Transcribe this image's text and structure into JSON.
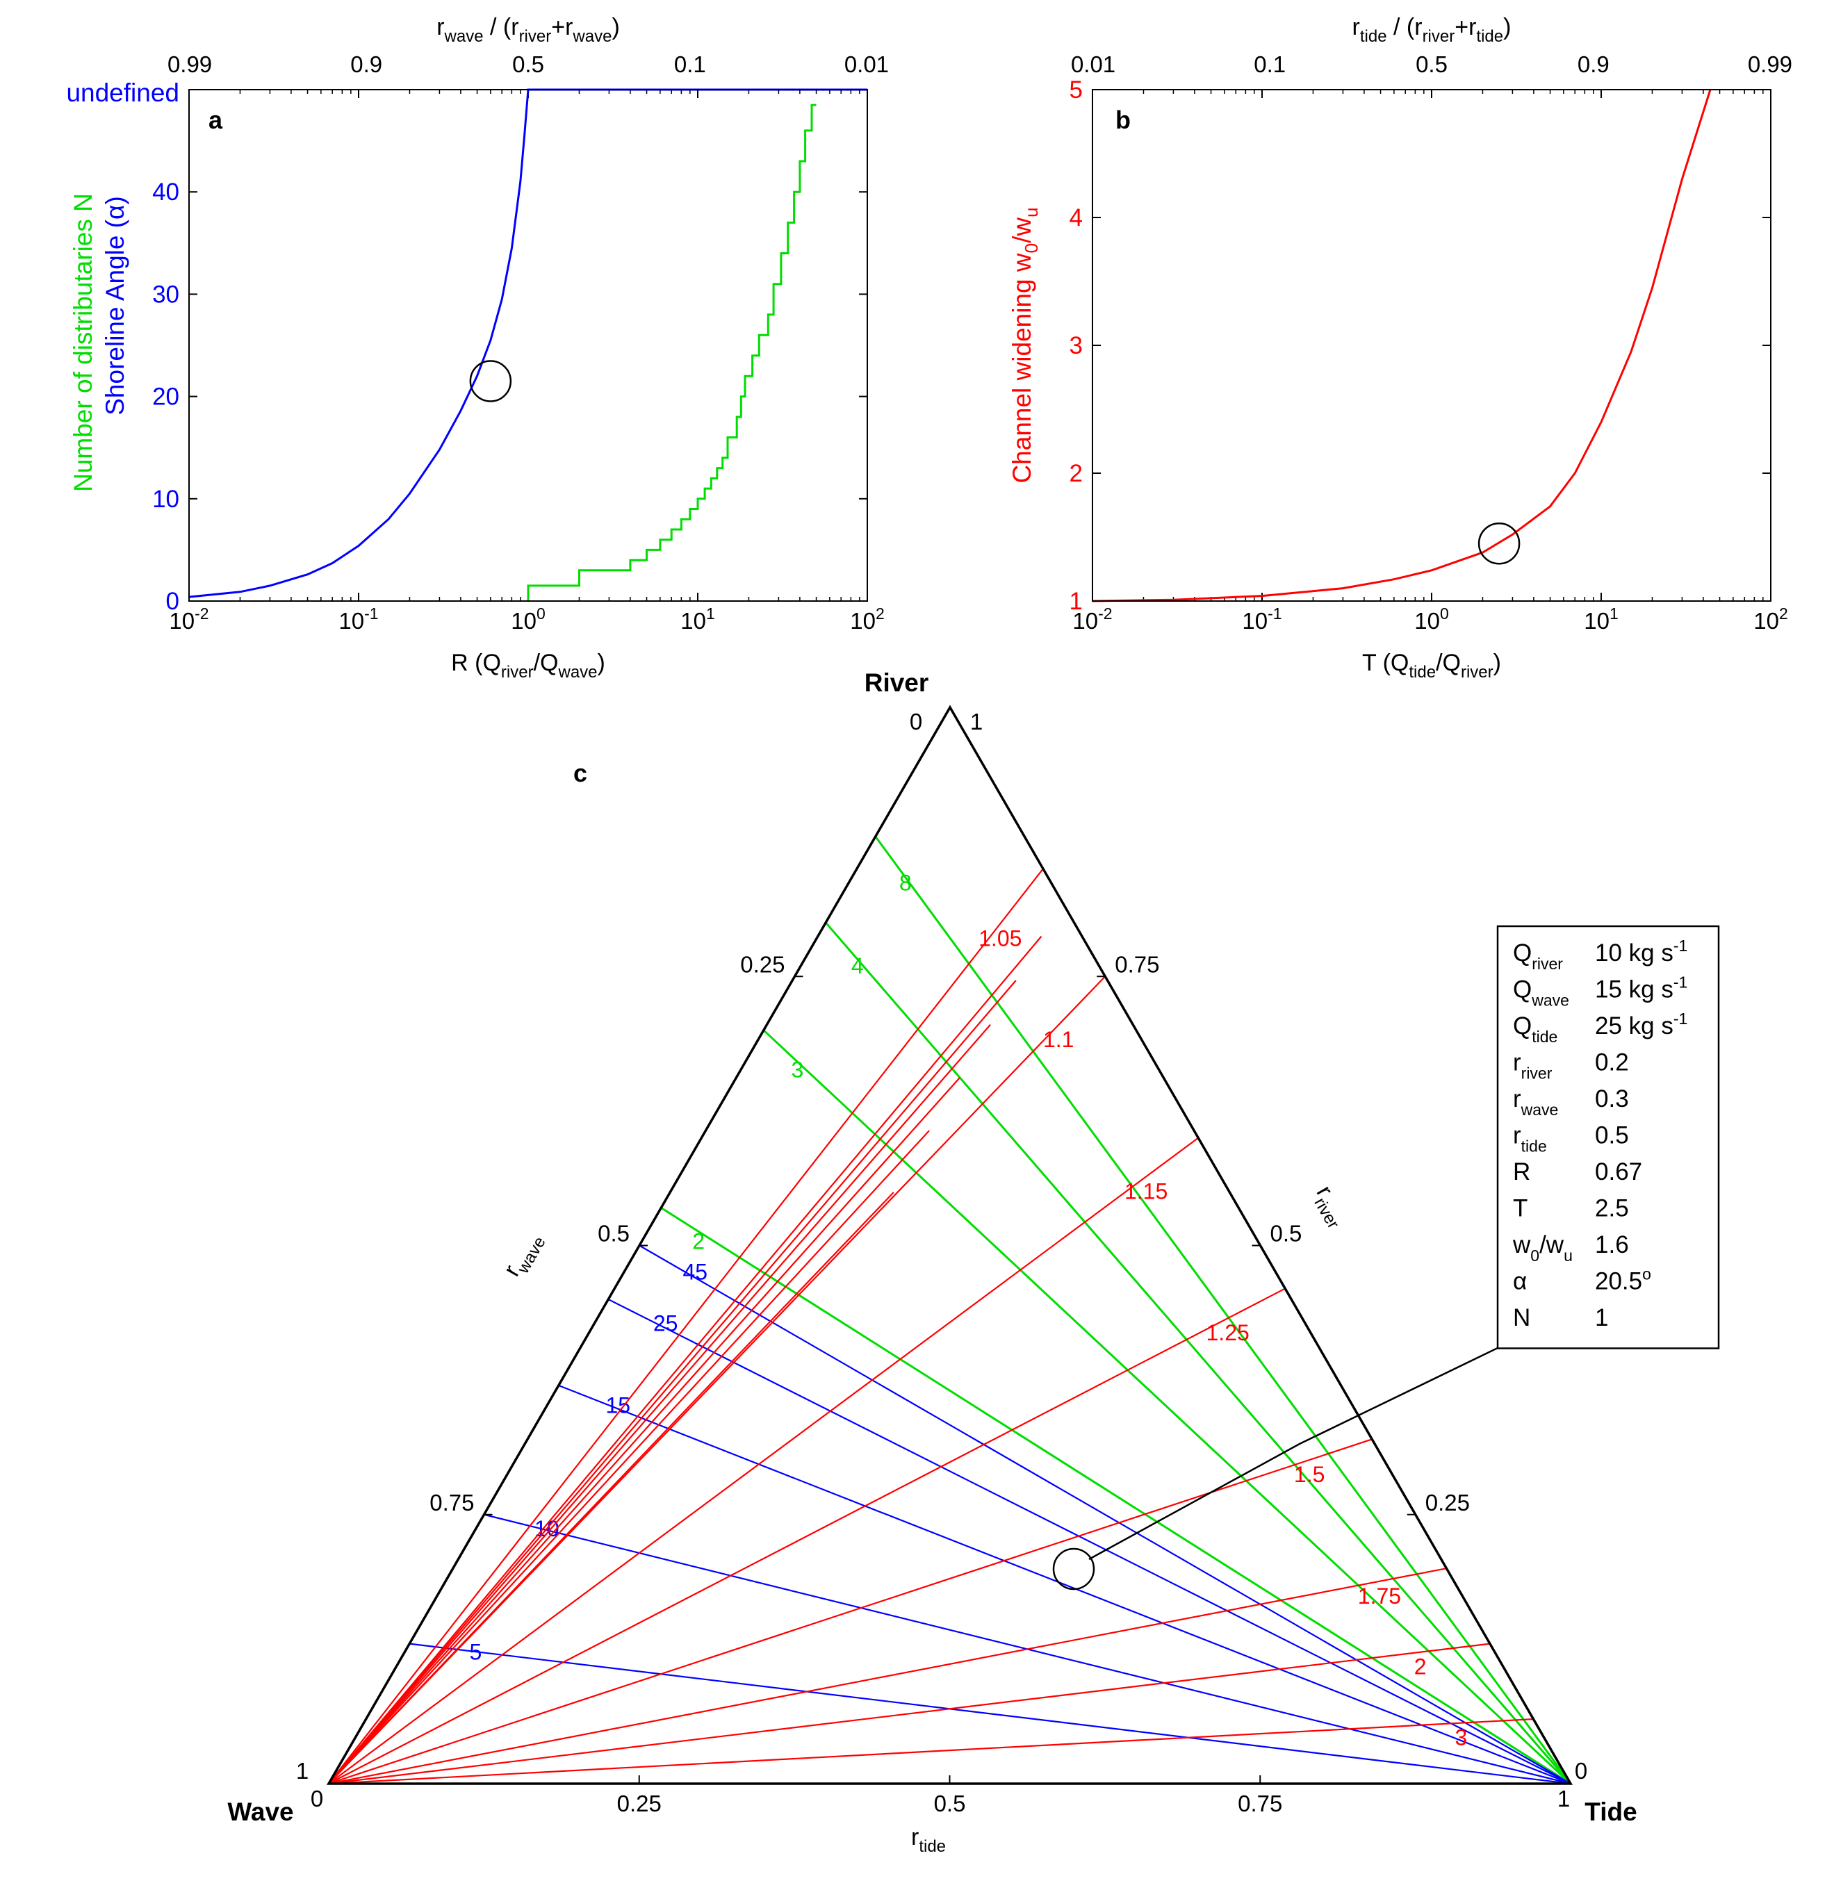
{
  "colors": {
    "blue": "#0000ff",
    "green": "#00dd00",
    "red": "#ff0000",
    "black": "#000000"
  },
  "chart_data": [
    {
      "id": "a",
      "type": "line",
      "panel_label": "a",
      "x_scale": "log",
      "xlim": [
        0.01,
        100
      ],
      "ylim": [
        0,
        50
      ],
      "xlabel": {
        "main": "R (Q",
        "s1": "river",
        "mid": "/Q",
        "s2": "wave",
        "end": ")"
      },
      "x_ticks": [
        {
          "value": 0.01,
          "base": "10",
          "exp": "-2"
        },
        {
          "value": 0.1,
          "base": "10",
          "exp": "-1"
        },
        {
          "value": 1,
          "base": "10",
          "exp": "0"
        },
        {
          "value": 10,
          "base": "10",
          "exp": "1"
        },
        {
          "value": 100,
          "base": "10",
          "exp": "2"
        }
      ],
      "y_ticks": [
        "0",
        "10",
        "20",
        "30",
        "40"
      ],
      "y_top_label": "undefined",
      "ylabel_green": "Number of distributaries N",
      "ylabel_blue": "Shoreline Angle (α)",
      "top_axis": {
        "label": {
          "p1": "r",
          "s1": "wave",
          "p2": " / (r",
          "s2": "river",
          "p3": "+r",
          "s3": "wave",
          "p4": ")"
        },
        "ticks": [
          "0.99",
          "0.9",
          "0.5",
          "0.1",
          "0.01"
        ]
      },
      "series": [
        {
          "color": "blue",
          "points": [
            [
              0.01,
              0.4
            ],
            [
              0.02,
              0.9
            ],
            [
              0.03,
              1.5
            ],
            [
              0.05,
              2.6
            ],
            [
              0.07,
              3.7
            ],
            [
              0.1,
              5.4
            ],
            [
              0.15,
              8.0
            ],
            [
              0.2,
              10.5
            ],
            [
              0.3,
              14.8
            ],
            [
              0.4,
              18.6
            ],
            [
              0.5,
              22.0
            ],
            [
              0.6,
              25.5
            ],
            [
              0.7,
              29.5
            ],
            [
              0.8,
              34.5
            ],
            [
              0.9,
              41.0
            ],
            [
              0.95,
              45.5
            ],
            [
              1.0,
              50.0
            ],
            [
              100,
              50.0
            ]
          ]
        },
        {
          "color": "green",
          "points": [
            [
              1,
              0
            ],
            [
              1,
              1.5
            ],
            [
              2,
              1.5
            ],
            [
              2,
              3
            ],
            [
              4,
              3
            ],
            [
              4,
              4
            ],
            [
              5,
              4
            ],
            [
              5,
              5
            ],
            [
              6,
              5
            ],
            [
              6,
              6
            ],
            [
              7,
              6
            ],
            [
              7,
              7
            ],
            [
              8,
              7
            ],
            [
              8,
              8
            ],
            [
              9,
              8
            ],
            [
              9,
              9
            ],
            [
              10,
              9
            ],
            [
              10,
              10
            ],
            [
              11,
              10
            ],
            [
              11,
              11
            ],
            [
              12,
              11
            ],
            [
              12,
              12
            ],
            [
              13,
              12
            ],
            [
              13,
              13
            ],
            [
              14,
              13
            ],
            [
              14,
              14
            ],
            [
              15,
              14
            ],
            [
              15,
              16
            ],
            [
              17,
              16
            ],
            [
              17,
              18
            ],
            [
              18,
              18
            ],
            [
              18,
              20
            ],
            [
              19,
              20
            ],
            [
              19,
              22
            ],
            [
              21,
              22
            ],
            [
              21,
              24
            ],
            [
              23,
              24
            ],
            [
              23,
              26
            ],
            [
              26,
              26
            ],
            [
              26,
              28
            ],
            [
              28,
              28
            ],
            [
              28,
              31
            ],
            [
              31,
              31
            ],
            [
              31,
              34
            ],
            [
              34,
              34
            ],
            [
              34,
              37
            ],
            [
              37,
              37
            ],
            [
              37,
              40
            ],
            [
              40,
              40
            ],
            [
              40,
              43
            ],
            [
              43,
              43
            ],
            [
              43,
              46
            ],
            [
              47,
              46
            ],
            [
              47,
              48.5
            ],
            [
              50,
              48.5
            ]
          ]
        }
      ],
      "marker_circle": {
        "x": 0.6,
        "y": 21.5
      }
    },
    {
      "id": "b",
      "type": "line",
      "panel_label": "b",
      "x_scale": "log",
      "xlim": [
        0.01,
        100
      ],
      "ylim": [
        1,
        5
      ],
      "xlabel": {
        "main": "T (Q",
        "s1": "tide",
        "mid": "/Q",
        "s2": "river",
        "end": ")"
      },
      "x_ticks": [
        {
          "value": 0.01,
          "base": "10",
          "exp": "-2"
        },
        {
          "value": 0.1,
          "base": "10",
          "exp": "-1"
        },
        {
          "value": 1,
          "base": "10",
          "exp": "0"
        },
        {
          "value": 10,
          "base": "10",
          "exp": "1"
        },
        {
          "value": 100,
          "base": "10",
          "exp": "2"
        }
      ],
      "y_ticks": [
        "1",
        "2",
        "3",
        "4",
        "5"
      ],
      "ylabel": {
        "main": "Channel widening w",
        "s1": "0",
        "mid": "/w",
        "s2": "u"
      },
      "top_axis": {
        "label": {
          "p1": "r",
          "s1": "tide",
          "p2": " / (r",
          "s2": "river",
          "p3": "+r",
          "s3": "tide",
          "p4": ")"
        },
        "ticks": [
          "0.99",
          "0.9",
          "0.5",
          "0.1",
          "0.01"
        ]
      },
      "series": [
        {
          "color": "red",
          "points": [
            [
              0.01,
              1.0
            ],
            [
              0.03,
              1.01
            ],
            [
              0.1,
              1.04
            ],
            [
              0.3,
              1.1
            ],
            [
              0.6,
              1.17
            ],
            [
              1,
              1.24
            ],
            [
              2,
              1.38
            ],
            [
              3,
              1.52
            ],
            [
              5,
              1.74
            ],
            [
              7,
              2.0
            ],
            [
              10,
              2.4
            ],
            [
              15,
              2.95
            ],
            [
              20,
              3.45
            ],
            [
              30,
              4.3
            ],
            [
              44,
              5.0
            ]
          ]
        }
      ],
      "marker_circle": {
        "x": 2.5,
        "y": 1.45
      }
    },
    {
      "id": "c",
      "type": "ternary",
      "panel_label": "c",
      "corners": {
        "top": "River",
        "left": "Wave",
        "right": "Tide"
      },
      "river_axis_label": {
        "main": "r",
        "sub": "river"
      },
      "wave_axis_label": {
        "main": "r",
        "sub": "wave"
      },
      "tide_axis_label": {
        "main": "r",
        "sub": "tide"
      },
      "corner_values": {
        "top_left": "0",
        "top_right": "1",
        "left_top": "1",
        "left_bottom": "0",
        "right_top": "0",
        "right_bottom": "1"
      },
      "bottom_ticks": [
        "0.25",
        "0.5",
        "0.75"
      ],
      "left_ticks": [
        "0.25",
        "0.5",
        "0.75"
      ],
      "right_ticks": [
        "0.75",
        "0.5",
        "0.25"
      ],
      "green_contours": [
        {
          "label": "8",
          "left_r_wave": 0.12
        },
        {
          "label": "4",
          "left_r_wave": 0.2
        },
        {
          "label": "3",
          "left_r_wave": 0.3
        },
        {
          "label": "2",
          "left_r_wave": 0.465
        }
      ],
      "blue_contours": [
        {
          "label": "45",
          "left_r_wave": 0.5
        },
        {
          "label": "25",
          "left_r_wave": 0.55
        },
        {
          "label": "15",
          "left_r_wave": 0.63
        },
        {
          "label": "10",
          "left_r_wave": 0.75
        },
        {
          "label": "5",
          "left_r_wave": 0.87
        }
      ],
      "red_contours": [
        {
          "label": "1.05",
          "right_r_river": 0.85
        },
        {
          "label": "1.1",
          "right_r_river": 0.75
        },
        {
          "label": "1.15",
          "right_r_river": 0.6
        },
        {
          "label": "1.25",
          "right_r_river": 0.46
        },
        {
          "label": "1.5",
          "right_r_river": 0.32
        },
        {
          "label": "1.75",
          "right_r_river": 0.2
        },
        {
          "label": "2",
          "right_r_river": 0.13
        },
        {
          "label": "3",
          "right_r_river": 0.06
        }
      ],
      "extra_red_rays": [
        0.55,
        0.7,
        0.82,
        0.92,
        0.97
      ],
      "marker_point": {
        "r_river": 0.2,
        "r_wave": 0.3,
        "r_tide": 0.5
      },
      "info_table": [
        {
          "sym": "Q",
          "sub": "river",
          "val": "10 kg s",
          "sup": "-1"
        },
        {
          "sym": "Q",
          "sub": "wave",
          "val": "15 kg s",
          "sup": "-1"
        },
        {
          "sym": "Q",
          "sub": "tide",
          "val": "25 kg s",
          "sup": "-1"
        },
        {
          "sym": "r",
          "sub": "river",
          "val": "0.2",
          "sup": ""
        },
        {
          "sym": "r",
          "sub": "wave",
          "val": "0.3",
          "sup": ""
        },
        {
          "sym": "r",
          "sub": "tide",
          "val": "0.5",
          "sup": ""
        },
        {
          "sym": "R",
          "sub": "",
          "val": "0.67",
          "sup": ""
        },
        {
          "sym": "T",
          "sub": "",
          "val": "2.5",
          "sup": ""
        },
        {
          "sym": "w",
          "sub": "0",
          "sym2": "/w",
          "sub2": "u",
          "val": "1.6",
          "sup": ""
        },
        {
          "sym": "α",
          "sub": "",
          "val": "20.5",
          "sup": "o"
        },
        {
          "sym": "N",
          "sub": "",
          "val": "1",
          "sup": ""
        }
      ]
    }
  ]
}
